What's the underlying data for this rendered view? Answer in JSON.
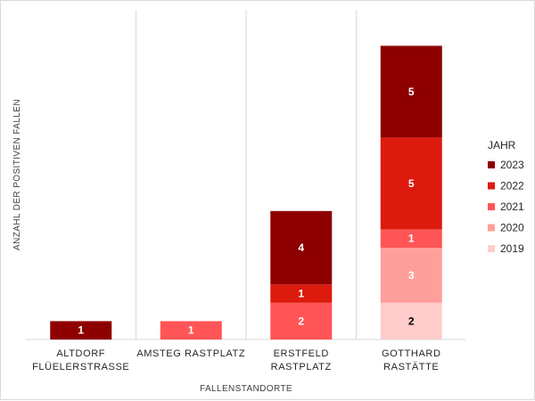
{
  "chart_data": {
    "type": "bar",
    "stacked": true,
    "title": "",
    "xlabel": "FALLENSTANDORTE",
    "ylabel": "ANZAHL DER POSITIVEN FALLEN",
    "categories": [
      [
        "ALTDORF",
        "FLÜELERSTRASSE"
      ],
      [
        "AMSTEG RASTPLATZ"
      ],
      [
        "ERSTFELD",
        "RASTPLATZ"
      ],
      [
        "GOTTHARD",
        "RASTÄTTE"
      ]
    ],
    "ylim": [
      0,
      16
    ],
    "grid": "vertical-separators",
    "legend": {
      "title": "JAHR",
      "position": "right"
    },
    "series": [
      {
        "name": "2019",
        "color": "#ffcccc",
        "label_color": "#000000",
        "values": [
          0,
          0,
          0,
          2
        ]
      },
      {
        "name": "2020",
        "color": "#ff9f9b",
        "label_color": "#ffffff",
        "values": [
          0,
          0,
          0,
          3
        ]
      },
      {
        "name": "2021",
        "color": "#ff5557",
        "label_color": "#ffffff",
        "values": [
          0,
          1,
          2,
          1
        ]
      },
      {
        "name": "2022",
        "color": "#dd1a0e",
        "label_color": "#ffffff",
        "values": [
          0,
          0,
          1,
          5
        ]
      },
      {
        "name": "2023",
        "color": "#8e0000",
        "label_color": "#ffffff",
        "values": [
          1,
          0,
          4,
          5
        ]
      }
    ]
  }
}
